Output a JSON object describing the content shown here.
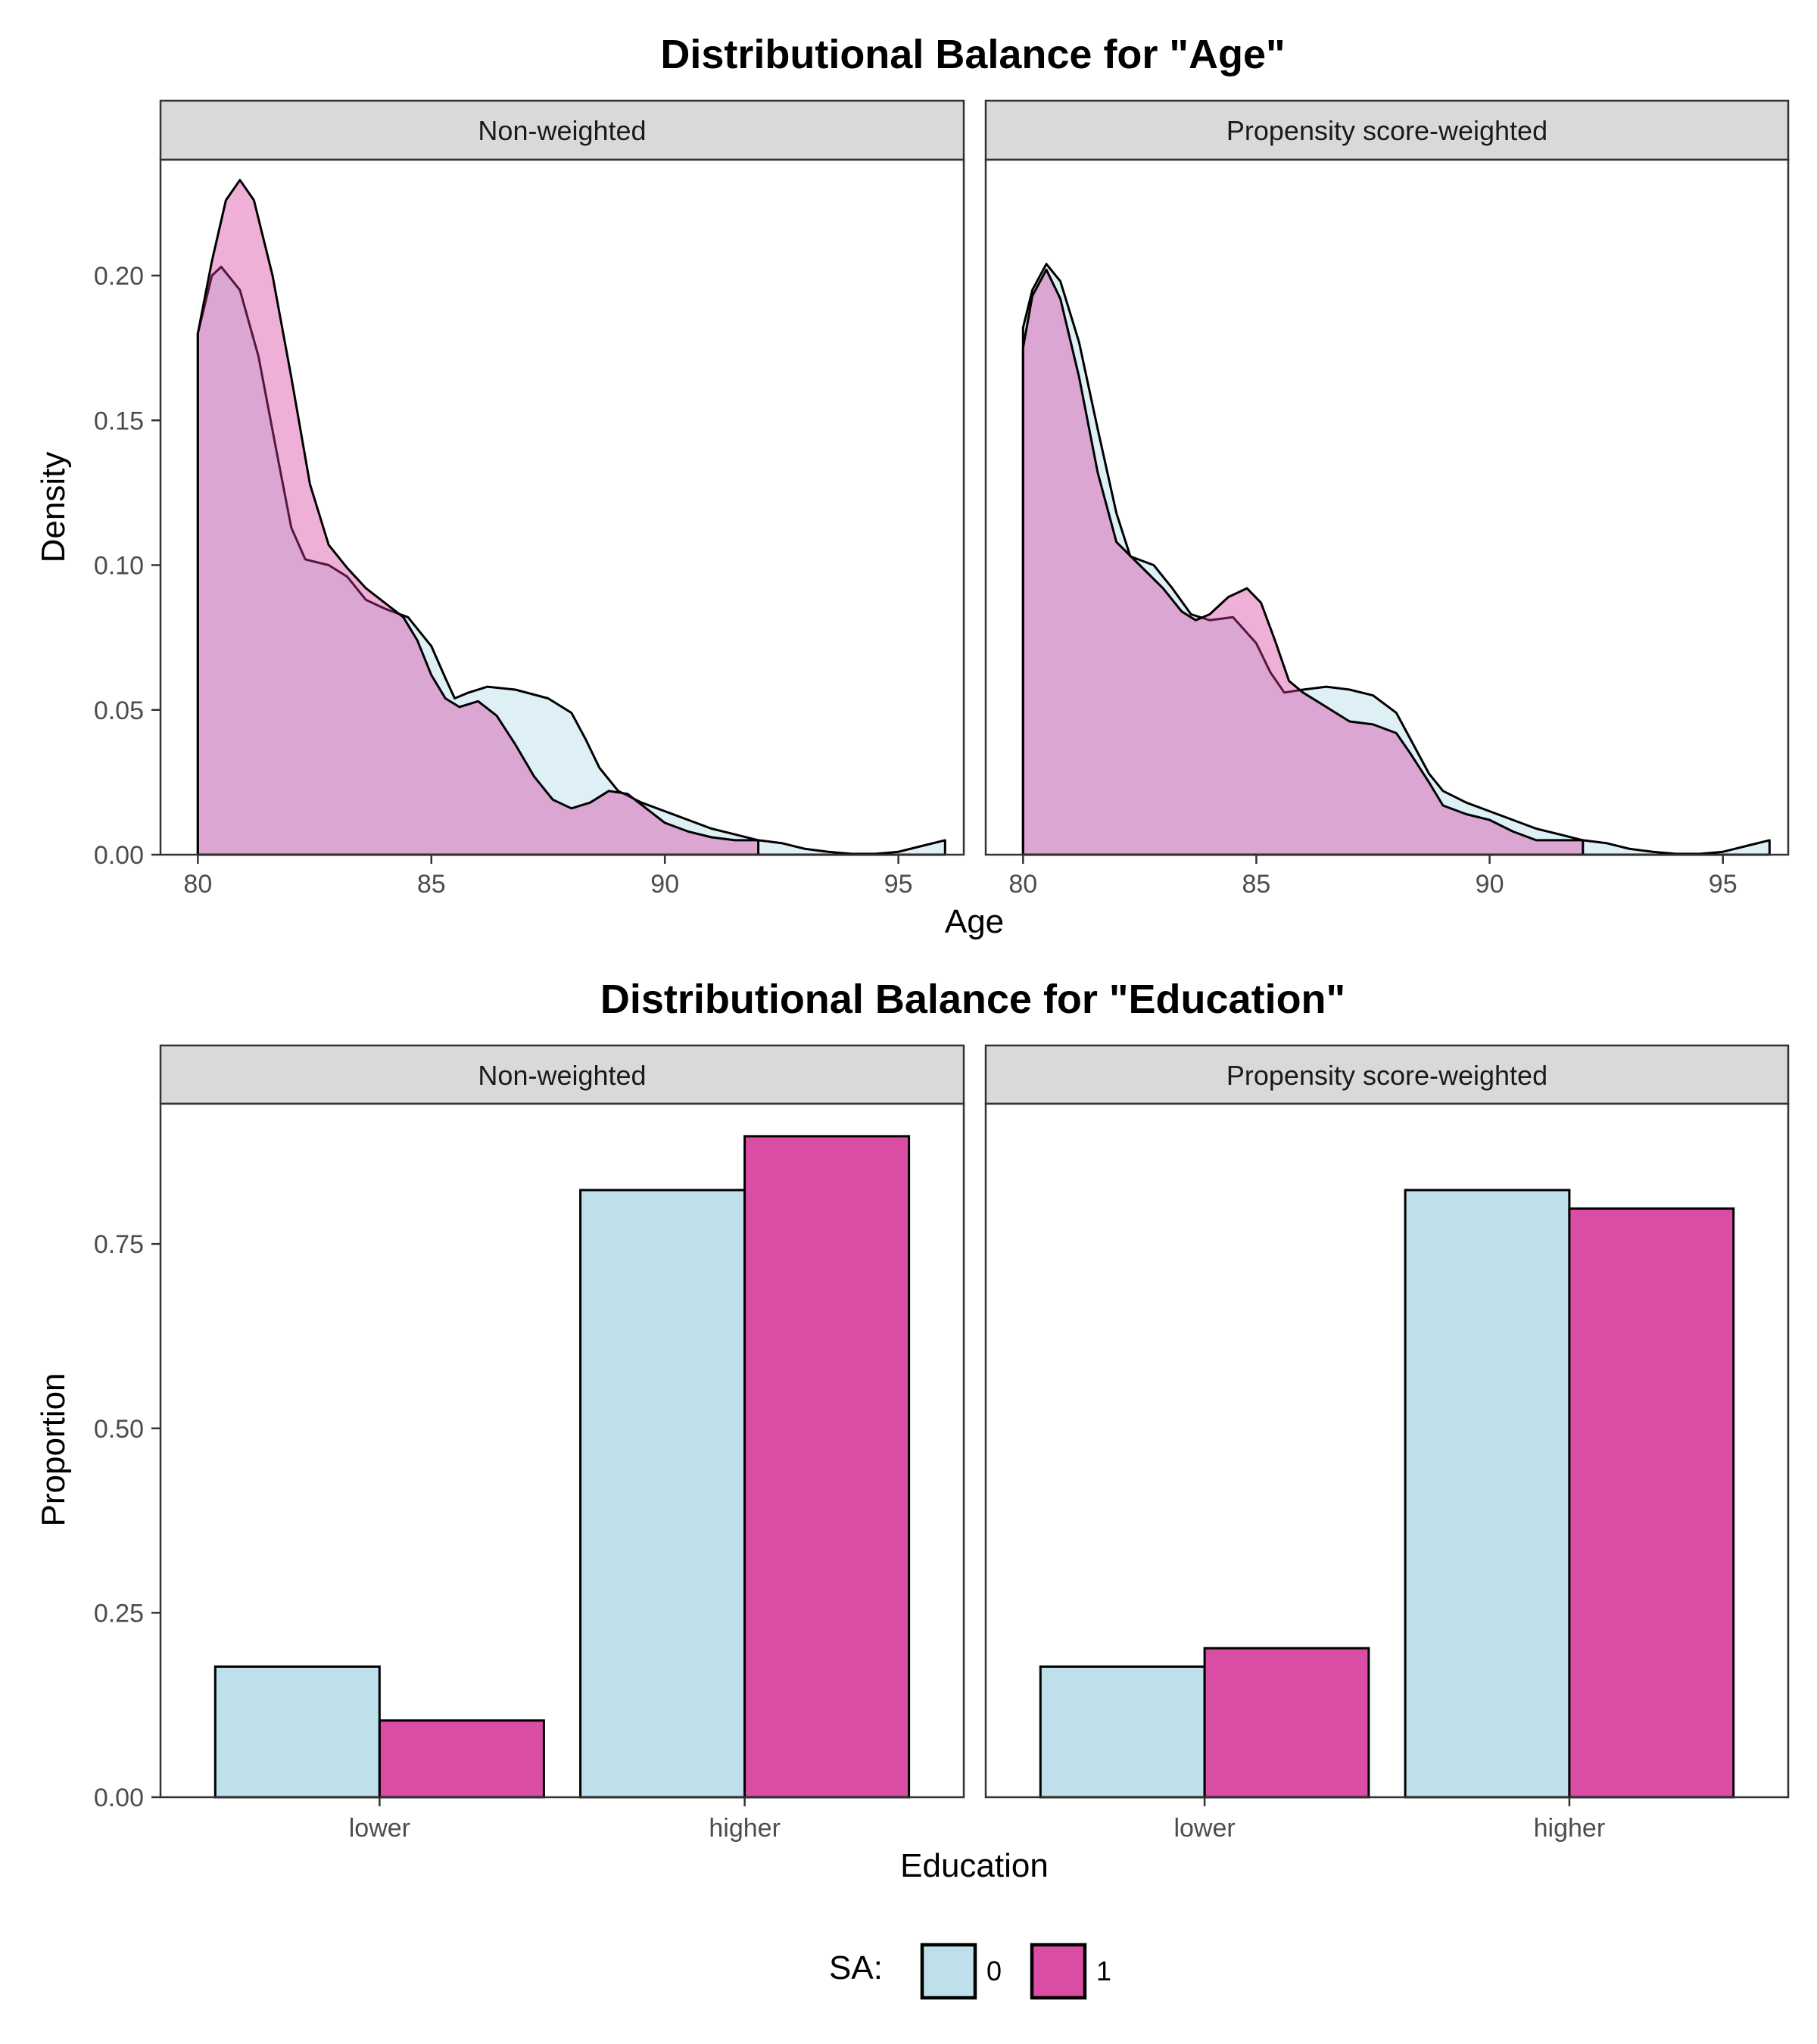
{
  "colors": {
    "sa0": "#add8e6",
    "sa1": "#d63a9b",
    "strip_bg": "#d9d9d9"
  },
  "legend": {
    "title": "SA:",
    "entries": [
      {
        "label": "0",
        "color": "#add8e6"
      },
      {
        "label": "1",
        "color": "#d63a9b"
      }
    ],
    "placement": "bottom"
  },
  "chart_data": [
    {
      "type": "area",
      "title": "Distributional Balance for \"Age\"",
      "xlabel": "Age",
      "ylabel": "Density",
      "xlim": [
        79.2,
        96.4
      ],
      "ylim": [
        0,
        0.24
      ],
      "x_ticks": [
        80,
        85,
        90,
        95
      ],
      "y_ticks": [
        "0.00",
        "0.05",
        "0.10",
        "0.15",
        "0.20"
      ],
      "y_tick_values": [
        0,
        0.05,
        0.1,
        0.15,
        0.2
      ],
      "grid": false,
      "fill_opacity": 0.4,
      "facets": [
        {
          "label": "Non-weighted",
          "series": [
            {
              "name": "0",
              "points": [
                [
                  80,
                  0.18
                ],
                [
                  80.3,
                  0.2
                ],
                [
                  80.5,
                  0.203
                ],
                [
                  80.9,
                  0.195
                ],
                [
                  81.3,
                  0.172
                ],
                [
                  81.7,
                  0.138
                ],
                [
                  82,
                  0.113
                ],
                [
                  82.3,
                  0.102
                ],
                [
                  82.8,
                  0.1
                ],
                [
                  83.2,
                  0.096
                ],
                [
                  83.6,
                  0.088
                ],
                [
                  84,
                  0.085
                ],
                [
                  84.5,
                  0.082
                ],
                [
                  85,
                  0.072
                ],
                [
                  85.3,
                  0.061
                ],
                [
                  85.5,
                  0.054
                ],
                [
                  85.8,
                  0.056
                ],
                [
                  86.2,
                  0.058
                ],
                [
                  86.8,
                  0.057
                ],
                [
                  87.5,
                  0.054
                ],
                [
                  88,
                  0.049
                ],
                [
                  88.3,
                  0.04
                ],
                [
                  88.6,
                  0.03
                ],
                [
                  89,
                  0.022
                ],
                [
                  89.5,
                  0.018
                ],
                [
                  90,
                  0.015
                ],
                [
                  90.5,
                  0.012
                ],
                [
                  91,
                  0.009
                ],
                [
                  91.5,
                  0.007
                ],
                [
                  92,
                  0.005
                ],
                [
                  92.5,
                  0.004
                ],
                [
                  93,
                  0.002
                ],
                [
                  93.5,
                  0.001
                ],
                [
                  94,
                  0.0003
                ],
                [
                  94.5,
                  0.0003
                ],
                [
                  95,
                  0.001
                ],
                [
                  95.5,
                  0.003
                ],
                [
                  96,
                  0.005
                ],
                [
                  96,
                  0
                ]
              ]
            },
            {
              "name": "1",
              "points": [
                [
                  80,
                  0.18
                ],
                [
                  80.3,
                  0.205
                ],
                [
                  80.6,
                  0.226
                ],
                [
                  80.9,
                  0.233
                ],
                [
                  81.2,
                  0.226
                ],
                [
                  81.6,
                  0.2
                ],
                [
                  82,
                  0.165
                ],
                [
                  82.4,
                  0.128
                ],
                [
                  82.8,
                  0.107
                ],
                [
                  83.2,
                  0.099
                ],
                [
                  83.6,
                  0.092
                ],
                [
                  84,
                  0.087
                ],
                [
                  84.4,
                  0.082
                ],
                [
                  84.7,
                  0.074
                ],
                [
                  85,
                  0.062
                ],
                [
                  85.3,
                  0.054
                ],
                [
                  85.6,
                  0.051
                ],
                [
                  86,
                  0.053
                ],
                [
                  86.4,
                  0.048
                ],
                [
                  86.8,
                  0.038
                ],
                [
                  87.2,
                  0.027
                ],
                [
                  87.6,
                  0.019
                ],
                [
                  88,
                  0.016
                ],
                [
                  88.4,
                  0.018
                ],
                [
                  88.8,
                  0.022
                ],
                [
                  89.2,
                  0.021
                ],
                [
                  89.6,
                  0.016
                ],
                [
                  90,
                  0.011
                ],
                [
                  90.5,
                  0.008
                ],
                [
                  91,
                  0.006
                ],
                [
                  91.5,
                  0.005
                ],
                [
                  92,
                  0.005
                ],
                [
                  92,
                  0
                ]
              ]
            }
          ]
        },
        {
          "label": "Propensity score-weighted",
          "series": [
            {
              "name": "0",
              "points": [
                [
                  80,
                  0.182
                ],
                [
                  80.2,
                  0.195
                ],
                [
                  80.5,
                  0.204
                ],
                [
                  80.8,
                  0.198
                ],
                [
                  81.2,
                  0.177
                ],
                [
                  81.6,
                  0.147
                ],
                [
                  82,
                  0.118
                ],
                [
                  82.3,
                  0.103
                ],
                [
                  82.8,
                  0.1
                ],
                [
                  83.2,
                  0.092
                ],
                [
                  83.6,
                  0.083
                ],
                [
                  84,
                  0.081
                ],
                [
                  84.5,
                  0.082
                ],
                [
                  85,
                  0.073
                ],
                [
                  85.3,
                  0.063
                ],
                [
                  85.6,
                  0.056
                ],
                [
                  86,
                  0.057
                ],
                [
                  86.5,
                  0.058
                ],
                [
                  87,
                  0.057
                ],
                [
                  87.5,
                  0.055
                ],
                [
                  88,
                  0.049
                ],
                [
                  88.3,
                  0.04
                ],
                [
                  88.7,
                  0.028
                ],
                [
                  89,
                  0.022
                ],
                [
                  89.5,
                  0.018
                ],
                [
                  90,
                  0.015
                ],
                [
                  90.5,
                  0.012
                ],
                [
                  91,
                  0.009
                ],
                [
                  91.5,
                  0.007
                ],
                [
                  92,
                  0.005
                ],
                [
                  92.5,
                  0.004
                ],
                [
                  93,
                  0.002
                ],
                [
                  93.5,
                  0.001
                ],
                [
                  94,
                  0.0003
                ],
                [
                  94.5,
                  0.0003
                ],
                [
                  95,
                  0.001
                ],
                [
                  95.5,
                  0.003
                ],
                [
                  96,
                  0.005
                ],
                [
                  96,
                  0
                ]
              ]
            },
            {
              "name": "1",
              "points": [
                [
                  80,
                  0.175
                ],
                [
                  80.2,
                  0.193
                ],
                [
                  80.5,
                  0.202
                ],
                [
                  80.8,
                  0.192
                ],
                [
                  81.2,
                  0.165
                ],
                [
                  81.6,
                  0.132
                ],
                [
                  82,
                  0.108
                ],
                [
                  82.5,
                  0.1
                ],
                [
                  83,
                  0.092
                ],
                [
                  83.4,
                  0.084
                ],
                [
                  83.7,
                  0.081
                ],
                [
                  84,
                  0.083
                ],
                [
                  84.4,
                  0.089
                ],
                [
                  84.8,
                  0.092
                ],
                [
                  85.1,
                  0.087
                ],
                [
                  85.4,
                  0.074
                ],
                [
                  85.7,
                  0.06
                ],
                [
                  86,
                  0.056
                ],
                [
                  86.5,
                  0.051
                ],
                [
                  87,
                  0.046
                ],
                [
                  87.5,
                  0.045
                ],
                [
                  88,
                  0.042
                ],
                [
                  88.3,
                  0.035
                ],
                [
                  88.7,
                  0.025
                ],
                [
                  89,
                  0.017
                ],
                [
                  89.5,
                  0.014
                ],
                [
                  90,
                  0.012
                ],
                [
                  90.5,
                  0.008
                ],
                [
                  91,
                  0.005
                ],
                [
                  91.5,
                  0.005
                ],
                [
                  92,
                  0.005
                ],
                [
                  92,
                  0
                ]
              ]
            }
          ]
        }
      ]
    },
    {
      "type": "bar",
      "title": "Distributional Balance for \"Education\"",
      "xlabel": "Education",
      "ylabel": "Proportion",
      "categories": [
        "lower",
        "higher"
      ],
      "ylim": [
        0,
        0.94
      ],
      "y_ticks": [
        "0.00",
        "0.25",
        "0.50",
        "0.75"
      ],
      "y_tick_values": [
        0,
        0.25,
        0.5,
        0.75
      ],
      "grid": false,
      "facets": [
        {
          "label": "Non-weighted",
          "series": [
            {
              "name": "0",
              "values": [
                0.177,
                0.823
              ]
            },
            {
              "name": "1",
              "values": [
                0.104,
                0.896
              ]
            }
          ]
        },
        {
          "label": "Propensity score-weighted",
          "series": [
            {
              "name": "0",
              "values": [
                0.177,
                0.823
              ]
            },
            {
              "name": "1",
              "values": [
                0.202,
                0.798
              ]
            }
          ]
        }
      ]
    }
  ]
}
